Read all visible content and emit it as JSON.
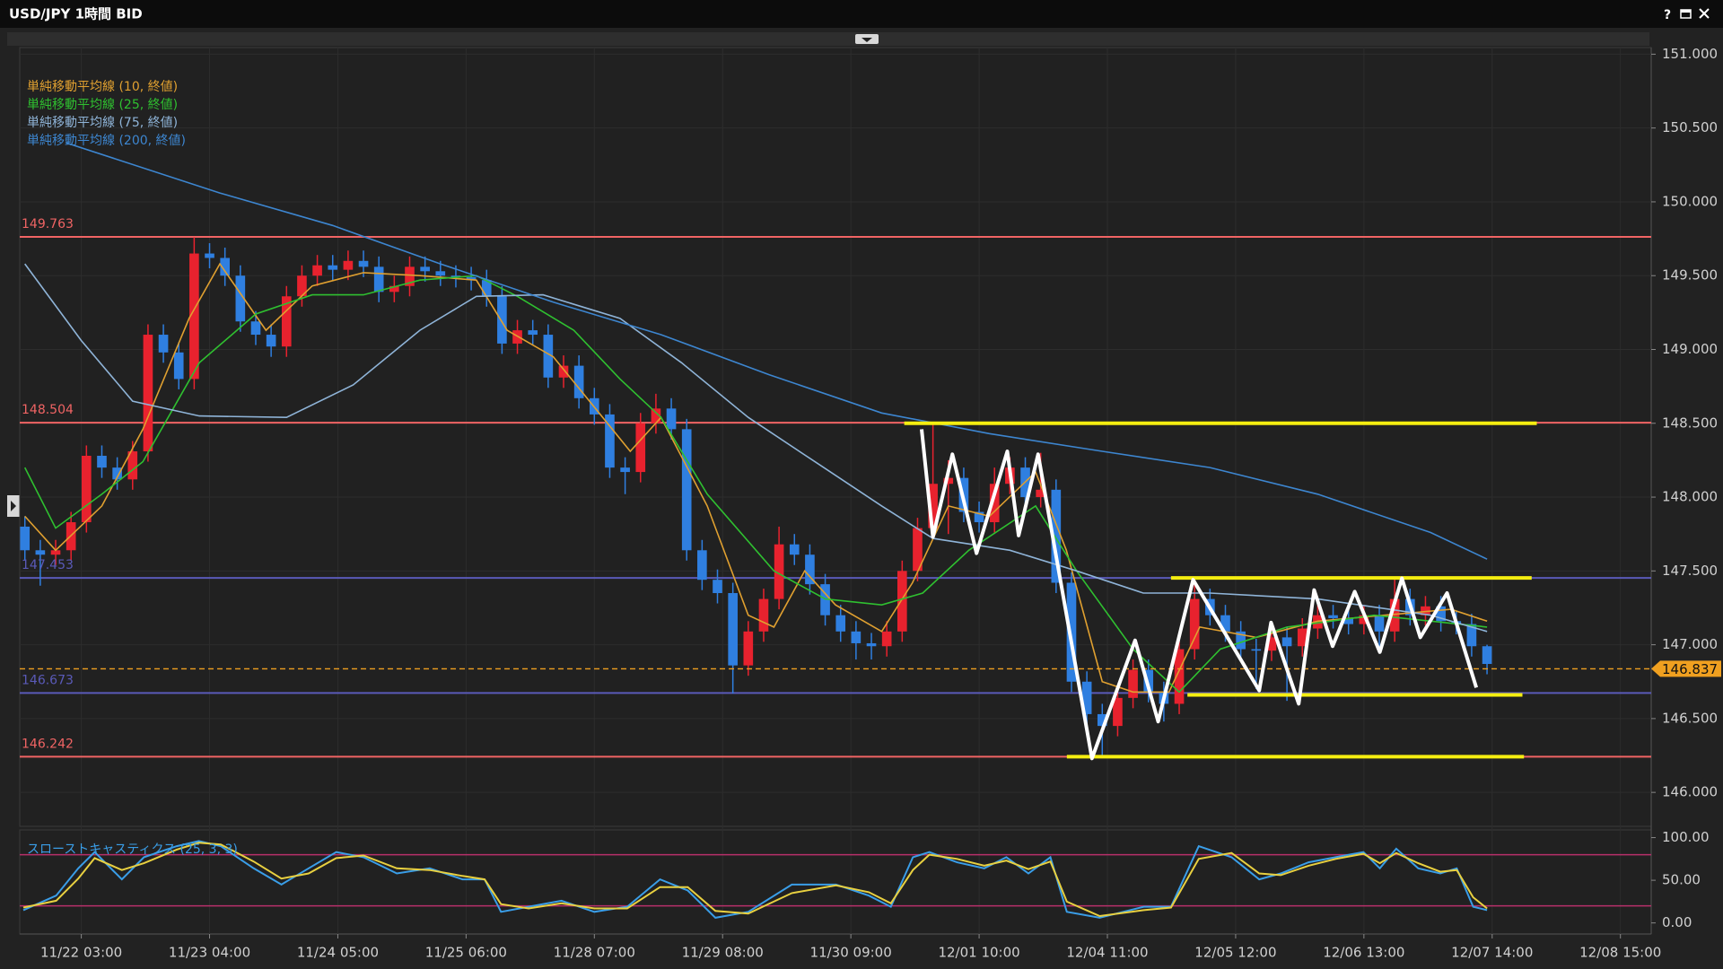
{
  "window": {
    "help": "?"
  },
  "chart_data": [
    {
      "type": "candlestick",
      "title": "USD/JPY 1時間 BID",
      "up_color": "#e8222e",
      "down_color": "#2f7fe0",
      "x": [
        -11,
        -8,
        -5,
        -2,
        1,
        4,
        7,
        10,
        13,
        16,
        19,
        22,
        25,
        28,
        31,
        34,
        37,
        40,
        43,
        46,
        49,
        52,
        55,
        58,
        61,
        64,
        67,
        70,
        73,
        76,
        79,
        82,
        85,
        88,
        91,
        94,
        97,
        100,
        103,
        106,
        109,
        112,
        115,
        118,
        121,
        124,
        127,
        130,
        133,
        136,
        139,
        142,
        145,
        148,
        151,
        154,
        157,
        160,
        163,
        166,
        169,
        172,
        175,
        178,
        181,
        184,
        187,
        190,
        193,
        196,
        199,
        202,
        205,
        208,
        211,
        214,
        217,
        220,
        223,
        226,
        229,
        232,
        235,
        238,
        241,
        244,
        247,
        250,
        253,
        256,
        259,
        262,
        265,
        268,
        271,
        274
      ],
      "open": [
        147.8,
        147.64,
        147.61,
        147.64,
        147.83,
        148.28,
        148.2,
        148.12,
        148.31,
        149.1,
        148.98,
        148.8,
        149.65,
        149.62,
        149.5,
        149.19,
        149.1,
        149.02,
        149.36,
        149.5,
        149.57,
        149.54,
        149.6,
        149.56,
        149.39,
        149.43,
        149.56,
        149.53,
        149.5,
        149.49,
        149.47,
        149.36,
        149.04,
        149.13,
        149.1,
        148.81,
        148.89,
        148.67,
        148.56,
        148.2,
        148.17,
        148.5,
        148.6,
        148.46,
        147.64,
        147.44,
        147.35,
        146.86,
        147.09,
        147.31,
        147.68,
        147.61,
        147.41,
        147.2,
        147.09,
        147.01,
        146.99,
        147.09,
        147.5,
        147.79,
        148.09,
        148.13,
        147.9,
        147.83,
        148.09,
        148.2,
        148.0,
        148.05,
        147.42,
        146.75,
        146.53,
        146.45,
        146.64,
        146.83,
        146.68,
        146.6,
        146.97,
        147.31,
        147.2,
        147.09,
        146.97,
        146.96,
        147.05,
        146.99,
        147.11,
        147.2,
        147.18,
        147.14,
        147.2,
        147.09,
        147.31,
        147.2,
        147.26,
        147.16,
        147.14,
        146.99
      ],
      "high": [
        147.87,
        147.71,
        147.71,
        147.9,
        148.35,
        148.35,
        148.27,
        148.38,
        149.17,
        149.17,
        149.05,
        149.76,
        149.72,
        149.69,
        149.57,
        149.26,
        149.17,
        149.43,
        149.57,
        149.64,
        149.64,
        149.67,
        149.67,
        149.63,
        149.5,
        149.63,
        149.63,
        149.6,
        149.57,
        149.56,
        149.54,
        149.43,
        149.2,
        149.2,
        149.17,
        148.96,
        148.96,
        148.74,
        148.63,
        148.27,
        148.57,
        148.7,
        148.67,
        148.53,
        147.71,
        147.51,
        147.42,
        147.16,
        147.38,
        147.8,
        147.75,
        147.68,
        147.48,
        147.27,
        147.16,
        147.08,
        147.16,
        147.57,
        147.86,
        148.5,
        148.25,
        148.2,
        147.97,
        148.2,
        148.27,
        148.27,
        148.3,
        148.12,
        147.49,
        146.82,
        146.6,
        146.71,
        146.9,
        146.9,
        146.75,
        147.04,
        147.46,
        147.38,
        147.27,
        147.16,
        147.04,
        147.12,
        147.12,
        147.18,
        147.27,
        147.27,
        147.25,
        147.27,
        147.27,
        147.46,
        147.38,
        147.33,
        147.33,
        147.23,
        147.21,
        147.0
      ],
      "low": [
        147.57,
        147.4,
        147.54,
        147.57,
        147.76,
        148.13,
        148.05,
        148.05,
        148.24,
        148.91,
        148.73,
        148.73,
        149.55,
        149.43,
        149.12,
        149.03,
        148.95,
        148.95,
        149.29,
        149.43,
        149.47,
        149.47,
        149.49,
        149.32,
        149.32,
        149.36,
        149.46,
        149.43,
        149.42,
        149.4,
        149.29,
        148.97,
        148.97,
        149.03,
        148.74,
        148.74,
        148.6,
        148.49,
        148.13,
        148.02,
        148.1,
        148.43,
        148.39,
        147.57,
        147.37,
        147.28,
        146.67,
        146.79,
        147.02,
        147.24,
        147.54,
        147.34,
        147.13,
        147.02,
        146.9,
        146.9,
        146.92,
        147.02,
        147.43,
        147.72,
        147.75,
        147.83,
        147.76,
        147.76,
        148.02,
        147.93,
        147.93,
        147.35,
        146.68,
        146.46,
        146.24,
        146.38,
        146.57,
        146.61,
        146.48,
        146.53,
        146.9,
        147.13,
        147.02,
        146.9,
        146.7,
        146.89,
        146.62,
        146.92,
        147.04,
        147.11,
        147.07,
        147.07,
        146.95,
        147.02,
        147.13,
        147.13,
        147.09,
        147.07,
        146.92,
        146.8
      ],
      "close": [
        147.64,
        147.61,
        147.64,
        147.83,
        148.28,
        148.2,
        148.12,
        148.31,
        149.1,
        148.98,
        148.8,
        149.65,
        149.62,
        149.5,
        149.19,
        149.1,
        149.02,
        149.36,
        149.5,
        149.57,
        149.54,
        149.6,
        149.56,
        149.39,
        149.43,
        149.56,
        149.53,
        149.5,
        149.49,
        149.47,
        149.36,
        149.04,
        149.13,
        149.1,
        148.81,
        148.89,
        148.67,
        148.56,
        148.2,
        148.17,
        148.5,
        148.6,
        148.46,
        147.64,
        147.44,
        147.35,
        146.86,
        147.09,
        147.31,
        147.68,
        147.61,
        147.41,
        147.2,
        147.09,
        147.01,
        146.99,
        147.09,
        147.5,
        147.79,
        148.09,
        148.13,
        147.9,
        147.83,
        148.09,
        148.2,
        148.0,
        148.05,
        147.42,
        146.75,
        146.53,
        146.45,
        146.64,
        146.83,
        146.68,
        146.6,
        146.97,
        147.31,
        147.2,
        147.09,
        146.97,
        146.96,
        147.05,
        146.99,
        147.11,
        147.2,
        147.18,
        147.14,
        147.2,
        147.09,
        147.31,
        147.2,
        147.26,
        147.16,
        147.14,
        146.99,
        146.87
      ],
      "series": [
        {
          "name": "単純移動平均線 (10, 終値)",
          "color": "#e0a030",
          "x": [
            -11,
            -5,
            4,
            12,
            21,
            27,
            36,
            45,
            55,
            66,
            77,
            83,
            92,
            100,
            107,
            113,
            122,
            130,
            135,
            141,
            147,
            156,
            162,
            169,
            177,
            186,
            192,
            199,
            205,
            212,
            218,
            229,
            241,
            254,
            267,
            274
          ],
          "values": [
            147.87,
            147.64,
            147.94,
            148.46,
            149.21,
            149.58,
            149.13,
            149.43,
            149.52,
            149.5,
            149.47,
            149.13,
            148.95,
            148.61,
            148.31,
            148.54,
            147.94,
            147.2,
            147.12,
            147.5,
            147.27,
            147.09,
            147.42,
            147.94,
            147.87,
            148.17,
            147.64,
            146.75,
            146.68,
            146.68,
            147.12,
            147.05,
            147.16,
            147.2,
            147.24,
            147.16
          ]
        },
        {
          "name": "単純移動平均線 (25, 終値)",
          "color": "#2fc030",
          "x": [
            -11,
            -5,
            4,
            12,
            23,
            34,
            45,
            55,
            66,
            77,
            85,
            96,
            105,
            113,
            122,
            135,
            145,
            156,
            164,
            173,
            186,
            194,
            205,
            214,
            222,
            235,
            252,
            274
          ],
          "values": [
            148.2,
            147.79,
            148.02,
            148.24,
            148.91,
            149.24,
            149.37,
            149.37,
            149.47,
            149.5,
            149.36,
            149.13,
            148.8,
            148.54,
            148.02,
            147.5,
            147.31,
            147.27,
            147.35,
            147.64,
            147.94,
            147.5,
            146.97,
            146.68,
            146.97,
            147.12,
            147.2,
            147.12
          ]
        },
        {
          "name": "単純移動平均線 (75, 終値)",
          "color": "#8fb4d8",
          "x": [
            -11,
            0,
            10,
            23,
            40,
            53,
            66,
            77,
            90,
            105,
            117,
            130,
            143,
            156,
            166,
            181,
            194,
            207,
            220,
            241,
            263,
            274
          ],
          "values": [
            149.58,
            149.06,
            148.65,
            148.55,
            148.54,
            148.76,
            149.13,
            149.36,
            149.37,
            149.21,
            148.91,
            148.54,
            148.24,
            147.94,
            147.72,
            147.64,
            147.5,
            147.35,
            147.35,
            147.31,
            147.2,
            147.09
          ]
        },
        {
          "name": "単純移動平均線 (200, 終値)",
          "color": "#3d86d0",
          "x": [
            -3,
            27,
            49,
            70,
            92,
            113,
            134,
            156,
            177,
            199,
            220,
            241,
            263,
            274
          ],
          "values": [
            150.4,
            150.06,
            149.84,
            149.58,
            149.32,
            149.1,
            148.83,
            148.57,
            148.43,
            148.31,
            148.2,
            148.02,
            147.76,
            147.58
          ]
        }
      ],
      "levels": [
        {
          "value": 149.763,
          "color": "#f06464"
        },
        {
          "value": 148.504,
          "color": "#f06464"
        },
        {
          "value": 147.453,
          "color": "#5a5ab8"
        },
        {
          "value": 146.673,
          "color": "#5a5ab8"
        },
        {
          "value": 146.242,
          "color": "#f06464"
        }
      ],
      "last_price": {
        "value": 146.837,
        "color": "#f0a020"
      },
      "drawings": {
        "color": "#f5ee10",
        "lines": [
          {
            "value": 148.5,
            "x": [
              160.4,
              283.7
            ]
          },
          {
            "value": 147.453,
            "x": [
              212.4,
              282.7
            ]
          },
          {
            "value": 146.66,
            "x": [
              215.6,
              280.9
            ]
          },
          {
            "value": 146.242,
            "x": [
              192.1,
              281.2
            ]
          }
        ]
      },
      "zigzag": {
        "color": "#ffffff",
        "x": [
          163.8,
          166.0,
          169.8,
          174.5,
          180.5,
          182.7,
          186.5,
          197.0,
          205.4,
          209.9,
          216.7,
          229.6,
          231.9,
          237.3,
          240.3,
          243.9,
          248.2,
          253.1,
          257.4,
          261.0,
          266.2,
          271.9
        ],
        "values": [
          148.46,
          147.73,
          148.29,
          147.62,
          148.31,
          147.74,
          148.29,
          146.23,
          147.03,
          146.48,
          147.44,
          146.69,
          147.15,
          146.6,
          147.37,
          146.99,
          147.36,
          146.95,
          147.45,
          147.05,
          147.35,
          146.71
        ]
      },
      "xlim": [
        -12,
        306
      ],
      "xticks": [
        {
          "value": 0,
          "label": "11/22 03:00"
        },
        {
          "value": 25,
          "label": "11/23 04:00"
        },
        {
          "value": 50,
          "label": "11/24 05:00"
        },
        {
          "value": 75,
          "label": "11/25 06:00"
        },
        {
          "value": 100,
          "label": "11/28 07:00"
        },
        {
          "value": 125,
          "label": "11/29 08:00"
        },
        {
          "value": 150,
          "label": "11/30 09:00"
        },
        {
          "value": 175,
          "label": "12/01 10:00"
        },
        {
          "value": 200,
          "label": "12/04 11:00"
        },
        {
          "value": 225,
          "label": "12/05 12:00"
        },
        {
          "value": 250,
          "label": "12/06 13:00"
        },
        {
          "value": 275,
          "label": "12/07 14:00"
        },
        {
          "value": 300,
          "label": "12/08 15:00"
        }
      ],
      "ylim": [
        145.77,
        151.045
      ],
      "yticks": [
        {
          "value": 146,
          "label": "146.000"
        },
        {
          "value": 146.5,
          "label": "146.500"
        },
        {
          "value": 147,
          "label": "147.000"
        },
        {
          "value": 147.5,
          "label": "147.500"
        },
        {
          "value": 148,
          "label": "148.000"
        },
        {
          "value": 148.5,
          "label": "148.500"
        },
        {
          "value": 149,
          "label": "149.000"
        },
        {
          "value": 149.5,
          "label": "149.500"
        },
        {
          "value": 150,
          "label": "150.000"
        },
        {
          "value": 150.5,
          "label": "150.500"
        },
        {
          "value": 151,
          "label": "151.000"
        }
      ],
      "grid": true
    },
    {
      "type": "line",
      "title": "スローストキャスティクス (25, 3, 3)",
      "x": [
        -11.3,
        -4.9,
        -0.6,
        2.6,
        7.9,
        12.2,
        18.6,
        22.9,
        27.2,
        33.6,
        39.0,
        44.3,
        49.7,
        55.0,
        61.5,
        67.9,
        74.3,
        78.6,
        81.8,
        87.2,
        93.6,
        100.0,
        106.4,
        112.8,
        118.2,
        123.6,
        130.0,
        138.5,
        147.1,
        153.5,
        157.8,
        162.1,
        165.3,
        170.7,
        176.0,
        180.3,
        184.6,
        188.9,
        192.1,
        198.5,
        207.1,
        212.4,
        217.8,
        224.2,
        229.6,
        233.8,
        239.2,
        244.5,
        249.9,
        253.1,
        256.3,
        260.6,
        264.9,
        268.1,
        271.3,
        274.0
      ],
      "series": [
        {
          "color": "#3a9ee8",
          "values": [
            15,
            32,
            64,
            83,
            51,
            77,
            90,
            96,
            90,
            64,
            45,
            64,
            83,
            77,
            58,
            64,
            51,
            51,
            13,
            19,
            26,
            13,
            19,
            51,
            38,
            6,
            13,
            45,
            45,
            32,
            19,
            77,
            83,
            71,
            64,
            77,
            58,
            77,
            13,
            6,
            19,
            19,
            90,
            77,
            51,
            58,
            71,
            77,
            83,
            64,
            87,
            64,
            58,
            64,
            19,
            15
          ]
        },
        {
          "color": "#e8d040",
          "values": [
            18,
            26,
            52,
            76,
            62,
            70,
            86,
            94,
            92,
            72,
            52,
            58,
            76,
            79,
            64,
            62,
            55,
            51,
            22,
            17,
            23,
            17,
            17,
            42,
            42,
            14,
            11,
            35,
            44,
            36,
            23,
            62,
            80,
            75,
            67,
            73,
            63,
            72,
            25,
            8,
            15,
            18,
            75,
            82,
            58,
            56,
            67,
            75,
            81,
            70,
            82,
            70,
            60,
            62,
            30,
            17
          ]
        }
      ],
      "levels": [
        80,
        20
      ],
      "level_color": "#b8306a",
      "ylim": [
        -13,
        109
      ],
      "yticks": [
        {
          "value": 0,
          "label": "0.00"
        },
        {
          "value": 50,
          "label": "50.00"
        },
        {
          "value": 100,
          "label": "100.00"
        }
      ]
    }
  ]
}
